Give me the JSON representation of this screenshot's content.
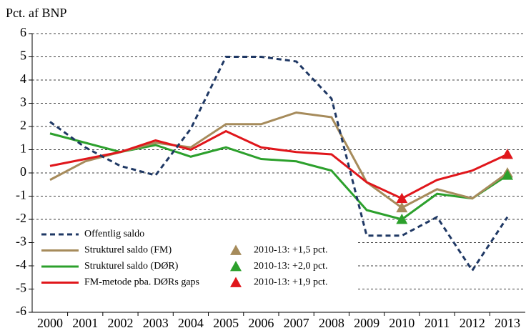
{
  "chart_data": {
    "type": "line",
    "y_label": "Pct. af BNP",
    "categories": [
      "2000",
      "2001",
      "2002",
      "2003",
      "2004",
      "2005",
      "2006",
      "2007",
      "2008",
      "2009",
      "2010",
      "2011",
      "2012",
      "2013"
    ],
    "ylim": [
      -6,
      6
    ],
    "yticks": [
      -6,
      -5,
      -4,
      -3,
      -2,
      -1,
      0,
      1,
      2,
      3,
      4,
      5,
      6
    ],
    "grid": true,
    "series": [
      {
        "name": "Offentlig saldo",
        "color": "#1f3864",
        "dashed": true,
        "values": [
          2.2,
          1.1,
          0.3,
          -0.1,
          1.9,
          5.0,
          5.0,
          4.8,
          3.2,
          -2.7,
          -2.7,
          -1.9,
          -4.2,
          -1.9
        ]
      },
      {
        "name": "Strukturel saldo (FM)",
        "color": "#a68b5b",
        "annotation": "2010-13: +1,5 pct.",
        "markers": [
          10,
          13
        ],
        "values": [
          -0.3,
          0.5,
          0.9,
          1.3,
          1.1,
          2.1,
          2.1,
          2.6,
          2.4,
          -0.4,
          -1.5,
          -0.7,
          -1.1,
          0.0
        ]
      },
      {
        "name": "Strukturel saldo (DØR)",
        "color": "#2ca02c",
        "annotation": "2010-13: +2,0 pct.",
        "markers": [
          10,
          13
        ],
        "values": [
          1.7,
          1.3,
          0.9,
          1.2,
          0.7,
          1.1,
          0.6,
          0.5,
          0.1,
          -1.6,
          -2.0,
          -0.9,
          -1.1,
          -0.1
        ]
      },
      {
        "name": "FM-metode pba. DØRs gaps",
        "color": "#e0161b",
        "annotation": "2010-13: +1,9 pct.",
        "markers": [
          10,
          13
        ],
        "values": [
          0.3,
          0.6,
          0.9,
          1.4,
          1.0,
          1.8,
          1.1,
          0.9,
          0.8,
          -0.4,
          -1.1,
          -0.3,
          0.1,
          0.8
        ]
      }
    ]
  }
}
